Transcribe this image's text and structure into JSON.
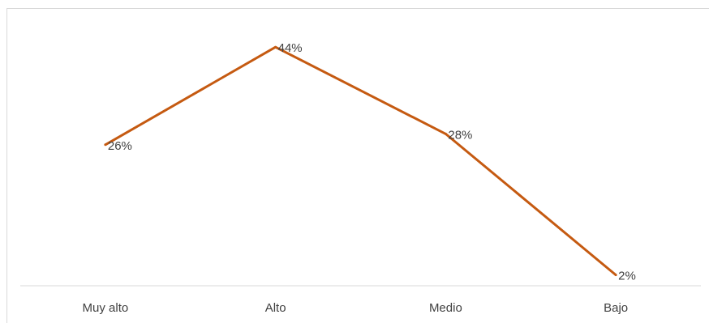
{
  "chart_data": {
    "type": "line",
    "title": "",
    "xlabel": "",
    "ylabel": "",
    "categories": [
      "Muy alto",
      "Alto",
      "Medio",
      "Bajo"
    ],
    "series": [
      {
        "values": [
          26,
          44,
          28,
          2
        ],
        "labels": [
          "26%",
          "44%",
          "28%",
          "2%"
        ],
        "color": "#c55a11"
      }
    ],
    "ylim": [
      0,
      50
    ],
    "grid": false,
    "legend": "none",
    "axis_color": "#d9d9d9",
    "text_color": "#404040"
  }
}
